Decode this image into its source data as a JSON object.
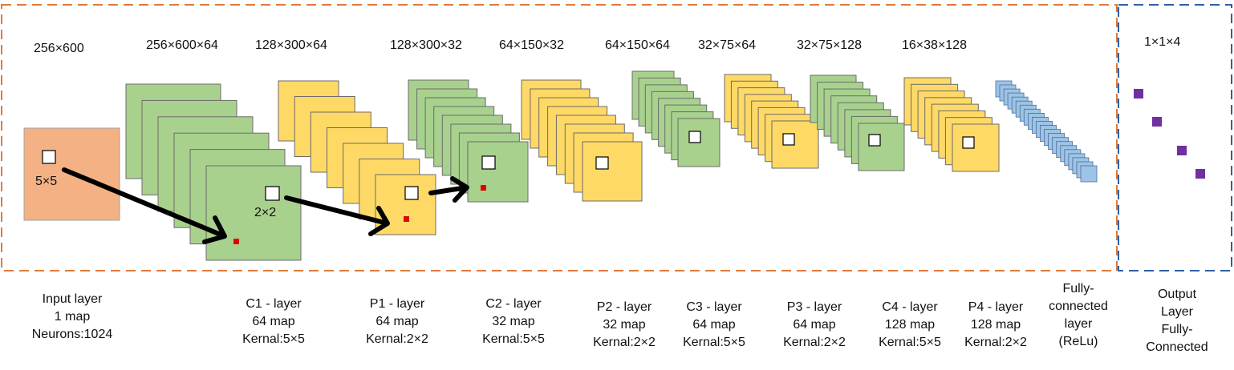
{
  "diagram": {
    "regions": [
      {
        "name": "feature-extraction-region",
        "stroke": "#e07b39"
      },
      {
        "name": "output-region",
        "stroke": "#2e5fa8"
      }
    ],
    "dimensions": {
      "input": "256×600",
      "c1": "256×600×64",
      "p1": "128×300×64",
      "c2": "128×300×32",
      "p2": "64×150×32",
      "c3": "64×150×64",
      "p3": "32×75×64",
      "c4": "32×75×128",
      "p4": "16×38×128",
      "output": "1×1×4"
    },
    "kernel_labels": {
      "input_kernel": "5×5",
      "c1_kernel": "2×2"
    },
    "captions": {
      "input": [
        "Input layer",
        "1 map",
        "Neurons:1024"
      ],
      "c1": [
        "C1 - layer",
        "64 map",
        "Kernal:5×5"
      ],
      "p1": [
        "P1 - layer",
        "64 map",
        "Kernal:2×2"
      ],
      "c2": [
        "C2 - layer",
        "32 map",
        "Kernal:5×5"
      ],
      "p2": [
        "P2 - layer",
        "32 map",
        "Kernal:2×2"
      ],
      "c3": [
        "C3 - layer",
        "64 map",
        "Kernal:5×5"
      ],
      "p3": [
        "P3 - layer",
        "64 map",
        "Kernal:2×2"
      ],
      "c4": [
        "C4 - layer",
        "128 map",
        "Kernal:5×5"
      ],
      "p4": [
        "P4 - layer",
        "128 map",
        "Kernal:2×2"
      ],
      "fc": [
        "Fully-",
        "connected",
        "layer",
        "(ReLu)"
      ],
      "out": [
        "Output",
        "Layer",
        "Fully-",
        "Connected"
      ]
    },
    "colors": {
      "input_fill": "#f4b183",
      "conv_fill": "#a9d18e",
      "pool_fill": "#ffd966",
      "fc_fill": "#9dc3e6",
      "output_fill": "#7030a0",
      "marker": "#e00000",
      "arrow": "#000000"
    }
  }
}
